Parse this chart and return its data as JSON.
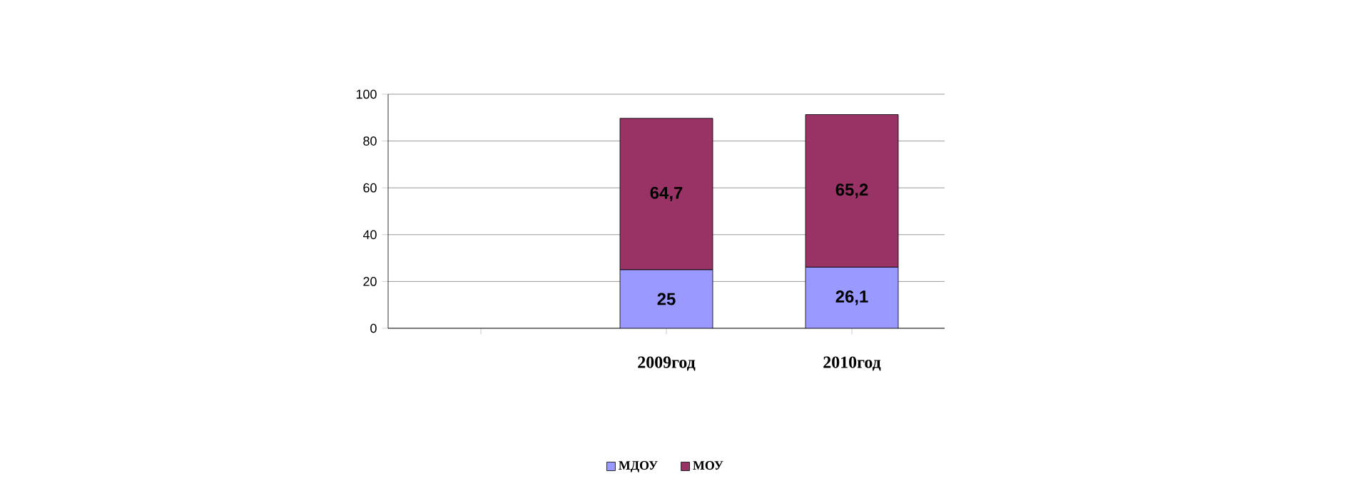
{
  "chart_data": {
    "type": "bar",
    "stacked": true,
    "categories": [
      null,
      "2009год",
      "2010год"
    ],
    "series": [
      {
        "name": "МДОУ",
        "color": "#9999ff",
        "values": [
          null,
          25,
          26.1
        ],
        "value_labels": [
          null,
          "25",
          "26,1"
        ]
      },
      {
        "name": "МОУ",
        "color": "#993366",
        "values": [
          null,
          64.7,
          65.2
        ],
        "value_labels": [
          null,
          "64,7",
          "65,2"
        ]
      }
    ],
    "ylim": [
      0,
      100
    ],
    "yticks": [
      0,
      20,
      40,
      60,
      80,
      100
    ],
    "grid": "y",
    "legend": "bottom"
  }
}
